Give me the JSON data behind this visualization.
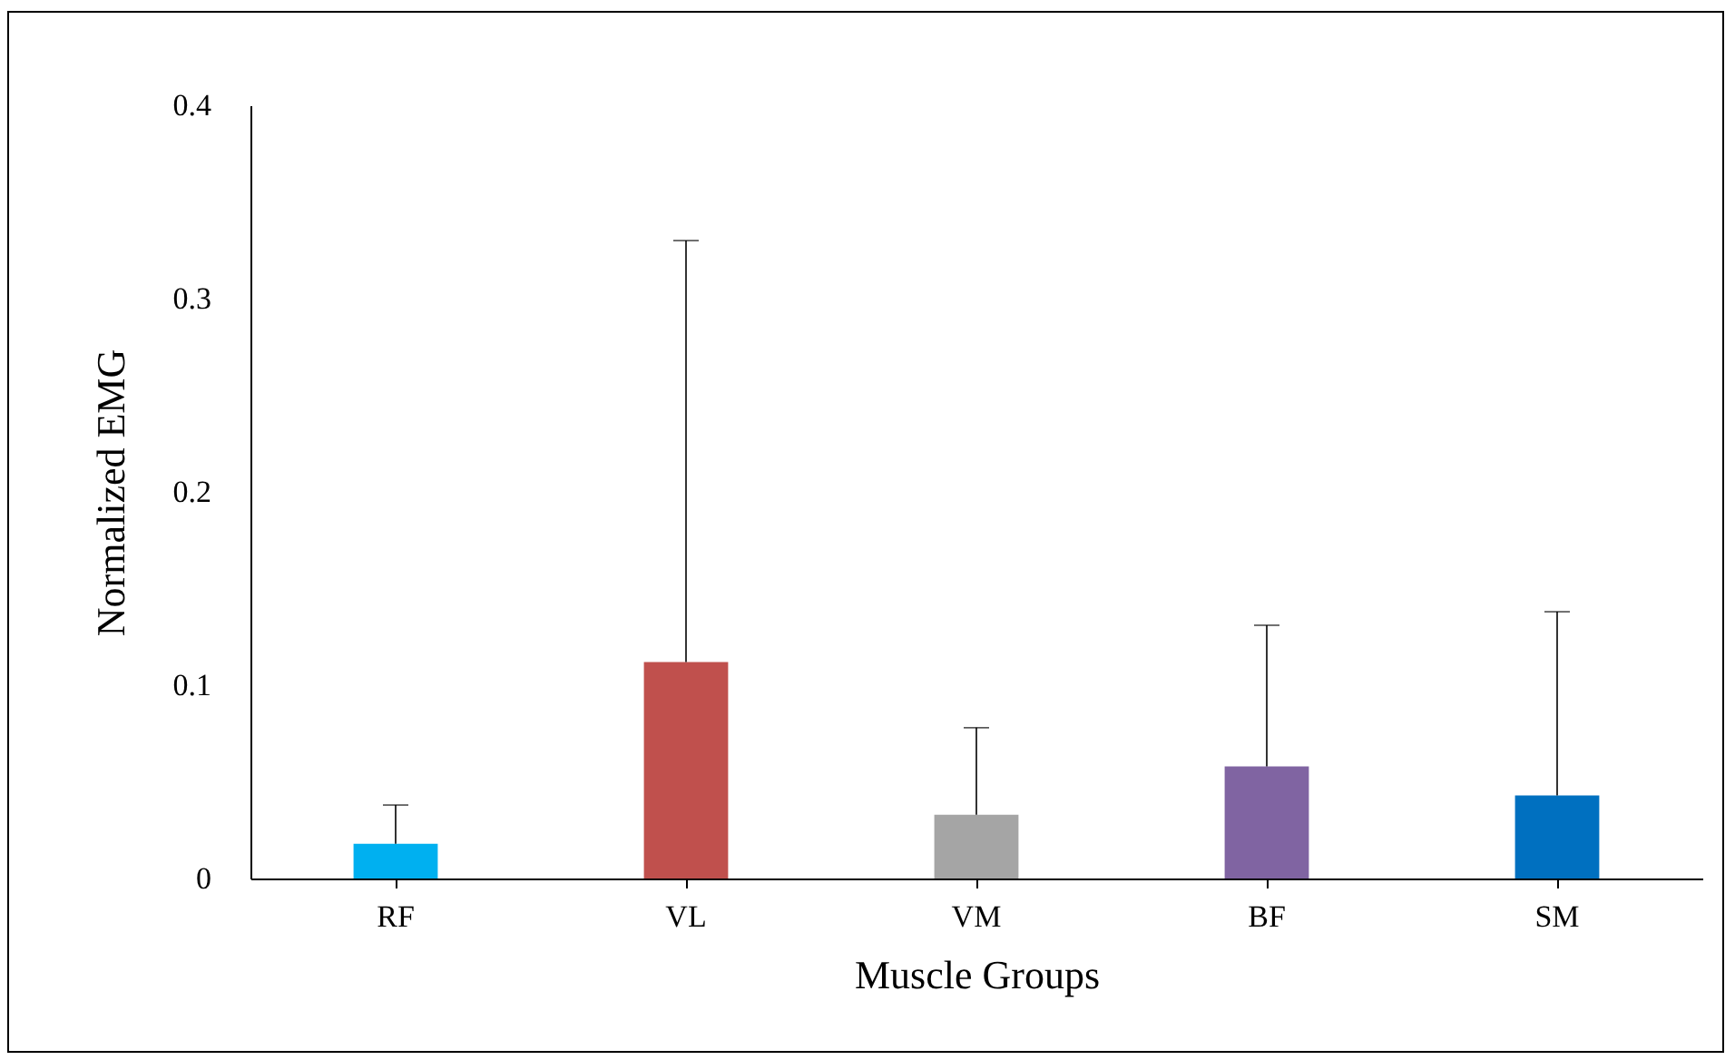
{
  "chart_data": {
    "type": "bar",
    "xlabel": "Muscle Groups",
    "ylabel": "Normalized EMG",
    "categories": [
      "RF",
      "VL",
      "VM",
      "BF",
      "SM"
    ],
    "values": [
      0.018,
      0.112,
      0.033,
      0.058,
      0.043
    ],
    "colors": [
      "#00b0f0",
      "#c0504d",
      "#a5a5a5",
      "#8064a2",
      "#0070c0"
    ],
    "errors": [
      [
        0.018,
        0.038
      ],
      [
        0.112,
        0.33
      ],
      [
        0.033,
        0.078
      ],
      [
        0.058,
        0.131
      ],
      [
        0.043,
        0.138
      ]
    ],
    "ylim": [
      0,
      0.4
    ],
    "yticks": [
      0,
      0.1,
      0.2,
      0.3,
      0.4
    ],
    "grid": false,
    "legend": false
  }
}
